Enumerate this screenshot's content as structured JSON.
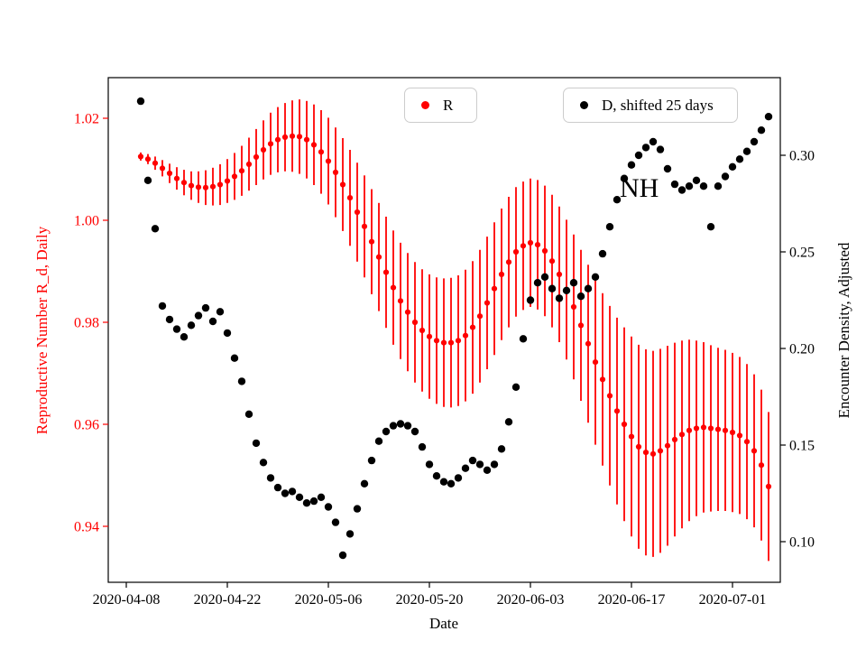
{
  "chart_data": {
    "type": "scatter",
    "title": "",
    "x_label": "Date",
    "y_left_label": "Reproductive Number R_d, Daily",
    "y_right_label": "Encounter Density, Adjusted",
    "grid": false,
    "legend_position": "upper center, two separate boxes",
    "annotation": {
      "text": "NH",
      "x_date": "2020-06-19",
      "y_right_value": 0.285
    },
    "colors": {
      "left_axis_text": "#ff0000",
      "right_axis_text": "#000000",
      "frame": "#000000",
      "legend_border": "#cccccc"
    },
    "legend": [
      {
        "label": "R",
        "color": "#ff0000"
      },
      {
        "label": "D, shifted 25 days",
        "color": "#000000"
      }
    ],
    "x_tick_labels": [
      "2020-04-08",
      "2020-04-22",
      "2020-05-06",
      "2020-05-20",
      "2020-06-03",
      "2020-06-17",
      "2020-07-01"
    ],
    "y_left_ticks": {
      "labels": [
        "1.02",
        "1.00",
        "0.98",
        "0.96",
        "0.94"
      ],
      "values": [
        1.02,
        1.0,
        0.98,
        0.96,
        0.94
      ]
    },
    "y_right_ticks": {
      "labels": [
        "0.30",
        "0.25",
        "0.20",
        "0.15",
        "0.10"
      ],
      "values": [
        0.3,
        0.25,
        0.2,
        0.15,
        0.1
      ]
    },
    "y_left_range": [
      0.929,
      1.028
    ],
    "y_right_range": [
      0.079,
      0.34
    ],
    "x_range": [
      "2020-04-05",
      "2020-07-07"
    ],
    "x_dates": [
      "2020-04-10",
      "2020-04-11",
      "2020-04-12",
      "2020-04-13",
      "2020-04-14",
      "2020-04-15",
      "2020-04-16",
      "2020-04-17",
      "2020-04-18",
      "2020-04-19",
      "2020-04-20",
      "2020-04-21",
      "2020-04-22",
      "2020-04-23",
      "2020-04-24",
      "2020-04-25",
      "2020-04-26",
      "2020-04-27",
      "2020-04-28",
      "2020-04-29",
      "2020-04-30",
      "2020-05-01",
      "2020-05-02",
      "2020-05-03",
      "2020-05-04",
      "2020-05-05",
      "2020-05-06",
      "2020-05-07",
      "2020-05-08",
      "2020-05-09",
      "2020-05-10",
      "2020-05-11",
      "2020-05-12",
      "2020-05-13",
      "2020-05-14",
      "2020-05-15",
      "2020-05-16",
      "2020-05-17",
      "2020-05-18",
      "2020-05-19",
      "2020-05-20",
      "2020-05-21",
      "2020-05-22",
      "2020-05-23",
      "2020-05-24",
      "2020-05-25",
      "2020-05-26",
      "2020-05-27",
      "2020-05-28",
      "2020-05-29",
      "2020-05-30",
      "2020-05-31",
      "2020-06-01",
      "2020-06-02",
      "2020-06-03",
      "2020-06-04",
      "2020-06-05",
      "2020-06-06",
      "2020-06-07",
      "2020-06-08",
      "2020-06-09",
      "2020-06-10",
      "2020-06-11",
      "2020-06-12",
      "2020-06-13",
      "2020-06-14",
      "2020-06-15",
      "2020-06-16",
      "2020-06-17",
      "2020-06-18",
      "2020-06-19",
      "2020-06-20",
      "2020-06-21",
      "2020-06-22",
      "2020-06-23",
      "2020-06-24",
      "2020-06-25",
      "2020-06-26",
      "2020-06-27",
      "2020-06-28",
      "2020-06-29",
      "2020-06-30",
      "2020-07-01",
      "2020-07-02",
      "2020-07-03",
      "2020-07-04",
      "2020-07-05",
      "2020-07-06"
    ],
    "series": [
      {
        "name": "R",
        "axis": "left",
        "color": "#ff0000",
        "marker": "circle",
        "error_bars": true,
        "values": [
          1.0125,
          1.012,
          1.0112,
          1.0102,
          1.0092,
          1.0082,
          1.0074,
          1.0068,
          1.0065,
          1.0064,
          1.0066,
          1.007,
          1.0077,
          1.0086,
          1.0097,
          1.011,
          1.0124,
          1.0138,
          1.015,
          1.0158,
          1.0163,
          1.0165,
          1.0164,
          1.0158,
          1.0148,
          1.0134,
          1.0116,
          1.0094,
          1.007,
          1.0044,
          1.0016,
          0.9988,
          0.9958,
          0.9928,
          0.9898,
          0.9868,
          0.9842,
          0.982,
          0.98,
          0.9784,
          0.9772,
          0.9764,
          0.976,
          0.976,
          0.9764,
          0.9774,
          0.979,
          0.9812,
          0.9838,
          0.9866,
          0.9894,
          0.9918,
          0.9938,
          0.995,
          0.9956,
          0.9952,
          0.994,
          0.992,
          0.9894,
          0.9864,
          0.983,
          0.9794,
          0.9758,
          0.9722,
          0.9688,
          0.9656,
          0.9626,
          0.96,
          0.9576,
          0.9556,
          0.9545,
          0.9542,
          0.9548,
          0.9558,
          0.957,
          0.958,
          0.9588,
          0.9592,
          0.9594,
          0.9592,
          0.959,
          0.9588,
          0.9584,
          0.9578,
          0.9566,
          0.9548,
          0.952,
          0.9478
        ],
        "error_half_width": [
          0.0008,
          0.001,
          0.0013,
          0.0016,
          0.0019,
          0.0022,
          0.0025,
          0.0028,
          0.0031,
          0.0034,
          0.0037,
          0.004,
          0.0043,
          0.0046,
          0.0049,
          0.0052,
          0.0055,
          0.0058,
          0.0061,
          0.0064,
          0.0067,
          0.007,
          0.0073,
          0.0076,
          0.0079,
          0.0082,
          0.0085,
          0.0088,
          0.0091,
          0.0094,
          0.0097,
          0.01,
          0.0103,
          0.0106,
          0.0109,
          0.0112,
          0.0114,
          0.0116,
          0.0118,
          0.012,
          0.0122,
          0.0124,
          0.0126,
          0.0127,
          0.0128,
          0.0129,
          0.013,
          0.013,
          0.013,
          0.013,
          0.0129,
          0.0128,
          0.0127,
          0.0126,
          0.0126,
          0.0127,
          0.0128,
          0.013,
          0.0133,
          0.0137,
          0.0142,
          0.0148,
          0.0155,
          0.0162,
          0.0169,
          0.0176,
          0.0183,
          0.019,
          0.0196,
          0.02,
          0.0202,
          0.0202,
          0.02,
          0.0196,
          0.019,
          0.0184,
          0.0178,
          0.0172,
          0.0167,
          0.0163,
          0.016,
          0.0158,
          0.0156,
          0.0154,
          0.0152,
          0.015,
          0.0148,
          0.0146
        ]
      },
      {
        "name": "D, shifted 25 days",
        "axis": "right",
        "color": "#000000",
        "marker": "circle",
        "error_bars": false,
        "values": [
          0.328,
          0.287,
          0.262,
          0.222,
          0.215,
          0.21,
          0.206,
          0.212,
          0.217,
          0.221,
          0.214,
          0.219,
          0.208,
          0.195,
          0.183,
          0.166,
          0.151,
          0.141,
          0.133,
          0.128,
          0.125,
          0.126,
          0.123,
          0.12,
          0.121,
          0.123,
          0.118,
          0.11,
          0.093,
          0.104,
          0.117,
          0.13,
          0.142,
          0.152,
          0.157,
          0.16,
          0.161,
          0.16,
          0.157,
          0.149,
          0.14,
          0.134,
          0.131,
          0.13,
          0.133,
          0.138,
          0.142,
          0.14,
          0.137,
          0.14,
          0.148,
          0.162,
          0.18,
          0.205,
          0.225,
          0.234,
          0.237,
          0.231,
          0.226,
          0.23,
          0.234,
          0.227,
          0.231,
          0.237,
          0.249,
          0.263,
          0.277,
          0.288,
          0.295,
          0.3,
          0.304,
          0.307,
          0.303,
          0.293,
          0.285,
          0.282,
          0.284,
          0.287,
          0.284,
          0.263,
          0.284,
          0.289,
          0.294,
          0.298,
          0.302,
          0.307,
          0.313,
          0.32
        ]
      }
    ]
  }
}
